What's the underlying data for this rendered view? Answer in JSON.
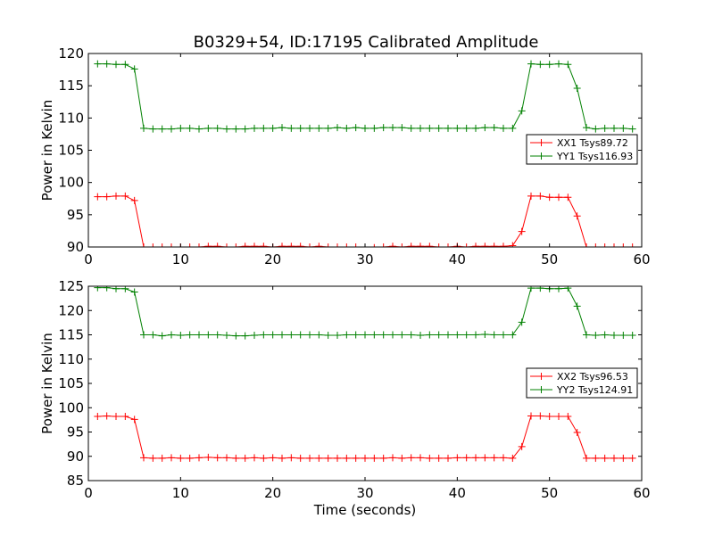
{
  "title": "B0329+54, ID:17195 Calibrated Amplitude",
  "chart_data": [
    {
      "type": "line",
      "ylabel": "Power in Kelvin",
      "xlabel": "",
      "xlim": [
        0,
        60
      ],
      "ylim": [
        90,
        120
      ],
      "xticks": [
        "0",
        "10",
        "20",
        "30",
        "40",
        "50",
        "60"
      ],
      "yticks": [
        "90",
        "95",
        "100",
        "105",
        "110",
        "115",
        "120"
      ],
      "grid": false,
      "legend_position": "right",
      "x": [
        1,
        2,
        3,
        4,
        5,
        6,
        7,
        8,
        9,
        10,
        11,
        12,
        13,
        14,
        15,
        16,
        17,
        18,
        19,
        20,
        21,
        22,
        23,
        24,
        25,
        26,
        27,
        28,
        29,
        30,
        31,
        32,
        33,
        34,
        35,
        36,
        37,
        38,
        39,
        40,
        41,
        42,
        43,
        44,
        45,
        46,
        47,
        48,
        49,
        50,
        51,
        52,
        53,
        54,
        55,
        56,
        57,
        58,
        59
      ],
      "series": [
        {
          "name": "XX1 Tsys89.72",
          "color": "#ff0000",
          "values": [
            97.8,
            97.8,
            97.9,
            97.9,
            97.2,
            90.0,
            90.0,
            90.0,
            90.0,
            90.0,
            90.0,
            90.0,
            90.1,
            90.1,
            90.0,
            90.0,
            90.1,
            90.1,
            90.1,
            90.0,
            90.1,
            90.1,
            90.1,
            90.0,
            90.1,
            90.0,
            90.0,
            90.0,
            90.0,
            90.0,
            89.9,
            90.0,
            90.1,
            90.0,
            90.1,
            90.1,
            90.1,
            90.0,
            90.0,
            90.1,
            90.0,
            90.1,
            90.1,
            90.1,
            90.1,
            90.2,
            92.4,
            97.9,
            97.9,
            97.7,
            97.7,
            97.7,
            94.8,
            90.0,
            90.0,
            90.0,
            90.0,
            90.0,
            90.0
          ]
        },
        {
          "name": "YY1 Tsys116.93",
          "color": "#008000",
          "values": [
            118.4,
            118.4,
            118.3,
            118.3,
            117.6,
            108.4,
            108.3,
            108.3,
            108.3,
            108.4,
            108.4,
            108.3,
            108.4,
            108.4,
            108.3,
            108.3,
            108.3,
            108.4,
            108.4,
            108.4,
            108.5,
            108.4,
            108.4,
            108.4,
            108.4,
            108.4,
            108.5,
            108.4,
            108.5,
            108.4,
            108.4,
            108.5,
            108.5,
            108.5,
            108.4,
            108.4,
            108.4,
            108.4,
            108.4,
            108.4,
            108.4,
            108.4,
            108.5,
            108.5,
            108.4,
            108.4,
            111.1,
            118.4,
            118.3,
            118.3,
            118.4,
            118.3,
            114.6,
            108.5,
            108.3,
            108.4,
            108.4,
            108.4,
            108.3
          ]
        }
      ]
    },
    {
      "type": "line",
      "ylabel": "Power in Kelvin",
      "xlabel": "Time (seconds)",
      "xlim": [
        0,
        60
      ],
      "ylim": [
        85,
        125
      ],
      "xticks": [
        "0",
        "10",
        "20",
        "30",
        "40",
        "50",
        "60"
      ],
      "yticks": [
        "85",
        "90",
        "95",
        "100",
        "105",
        "110",
        "115",
        "120",
        "125"
      ],
      "grid": false,
      "legend_position": "right",
      "x": [
        1,
        2,
        3,
        4,
        5,
        6,
        7,
        8,
        9,
        10,
        11,
        12,
        13,
        14,
        15,
        16,
        17,
        18,
        19,
        20,
        21,
        22,
        23,
        24,
        25,
        26,
        27,
        28,
        29,
        30,
        31,
        32,
        33,
        34,
        35,
        36,
        37,
        38,
        39,
        40,
        41,
        42,
        43,
        44,
        45,
        46,
        47,
        48,
        49,
        50,
        51,
        52,
        53,
        54,
        55,
        56,
        57,
        58,
        59
      ],
      "series": [
        {
          "name": "XX2 Tsys96.53",
          "color": "#ff0000",
          "values": [
            98.2,
            98.3,
            98.2,
            98.2,
            97.6,
            89.7,
            89.6,
            89.6,
            89.7,
            89.6,
            89.6,
            89.7,
            89.8,
            89.7,
            89.7,
            89.6,
            89.6,
            89.7,
            89.6,
            89.7,
            89.6,
            89.7,
            89.6,
            89.6,
            89.6,
            89.6,
            89.6,
            89.6,
            89.6,
            89.6,
            89.6,
            89.6,
            89.7,
            89.6,
            89.7,
            89.7,
            89.6,
            89.6,
            89.6,
            89.7,
            89.7,
            89.7,
            89.7,
            89.7,
            89.7,
            89.6,
            92.0,
            98.3,
            98.3,
            98.2,
            98.2,
            98.2,
            94.9,
            89.6,
            89.6,
            89.6,
            89.6,
            89.6,
            89.6
          ]
        },
        {
          "name": "YY2 Tsys124.91",
          "color": "#008000",
          "values": [
            124.7,
            124.7,
            124.5,
            124.5,
            123.8,
            115.0,
            115.0,
            114.8,
            115.0,
            114.9,
            115.0,
            115.0,
            115.0,
            115.0,
            114.9,
            114.8,
            114.8,
            114.9,
            115.0,
            115.0,
            115.0,
            115.0,
            115.0,
            115.0,
            115.0,
            114.9,
            114.9,
            115.0,
            115.0,
            115.0,
            115.0,
            115.0,
            115.0,
            115.0,
            115.0,
            114.9,
            115.0,
            115.0,
            115.0,
            115.0,
            115.0,
            115.0,
            115.1,
            115.0,
            115.0,
            115.0,
            117.6,
            124.6,
            124.6,
            124.5,
            124.5,
            124.6,
            120.9,
            115.0,
            114.9,
            115.0,
            114.9,
            114.9,
            114.9
          ]
        }
      ]
    }
  ]
}
